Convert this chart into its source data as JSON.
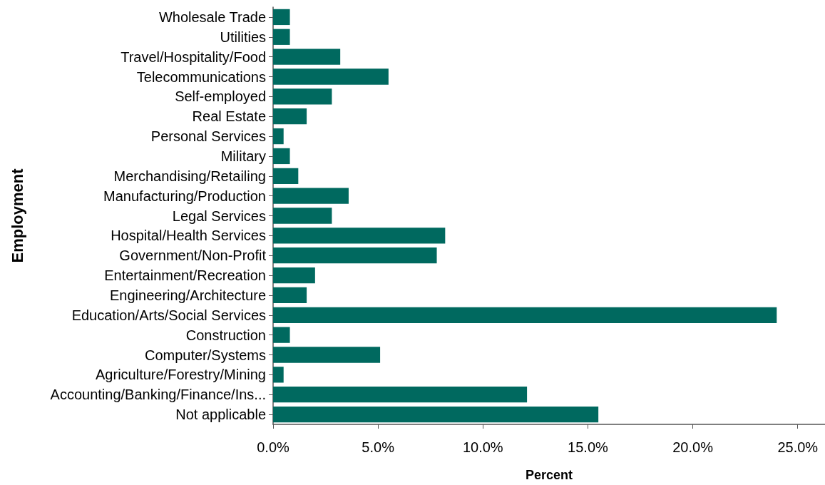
{
  "chart_data": {
    "type": "bar",
    "orientation": "horizontal",
    "xlabel": "Percent",
    "ylabel": "Employment",
    "categories": [
      "Wholesale Trade",
      "Utilities",
      "Travel/Hospitality/Food",
      "Telecommunications",
      "Self-employed",
      "Real Estate",
      "Personal Services",
      "Military",
      "Merchandising/Retailing",
      "Manufacturing/Production",
      "Legal Services",
      "Hospital/Health Services",
      "Government/Non-Profit",
      "Entertainment/Recreation",
      "Engineering/Architecture",
      "Education/Arts/Social Services",
      "Construction",
      "Computer/Systems",
      "Agriculture/Forestry/Mining",
      "Accounting/Banking/Finance/Ins...",
      "Not applicable"
    ],
    "values": [
      0.8,
      0.8,
      3.2,
      5.5,
      2.8,
      1.6,
      0.5,
      0.8,
      1.2,
      3.6,
      2.8,
      8.2,
      7.8,
      2.0,
      1.6,
      24.0,
      0.8,
      5.1,
      0.5,
      12.1,
      15.5
    ],
    "color": "#00695f",
    "xlim": [
      0,
      26.3
    ],
    "xticks": [
      {
        "value": 0,
        "label": "0.0%"
      },
      {
        "value": 5,
        "label": "5.0%"
      },
      {
        "value": 10,
        "label": "10.0%"
      },
      {
        "value": 15,
        "label": "15.0%"
      },
      {
        "value": 20,
        "label": "20.0%"
      },
      {
        "value": 25,
        "label": "25.0%"
      }
    ],
    "grid": false
  }
}
